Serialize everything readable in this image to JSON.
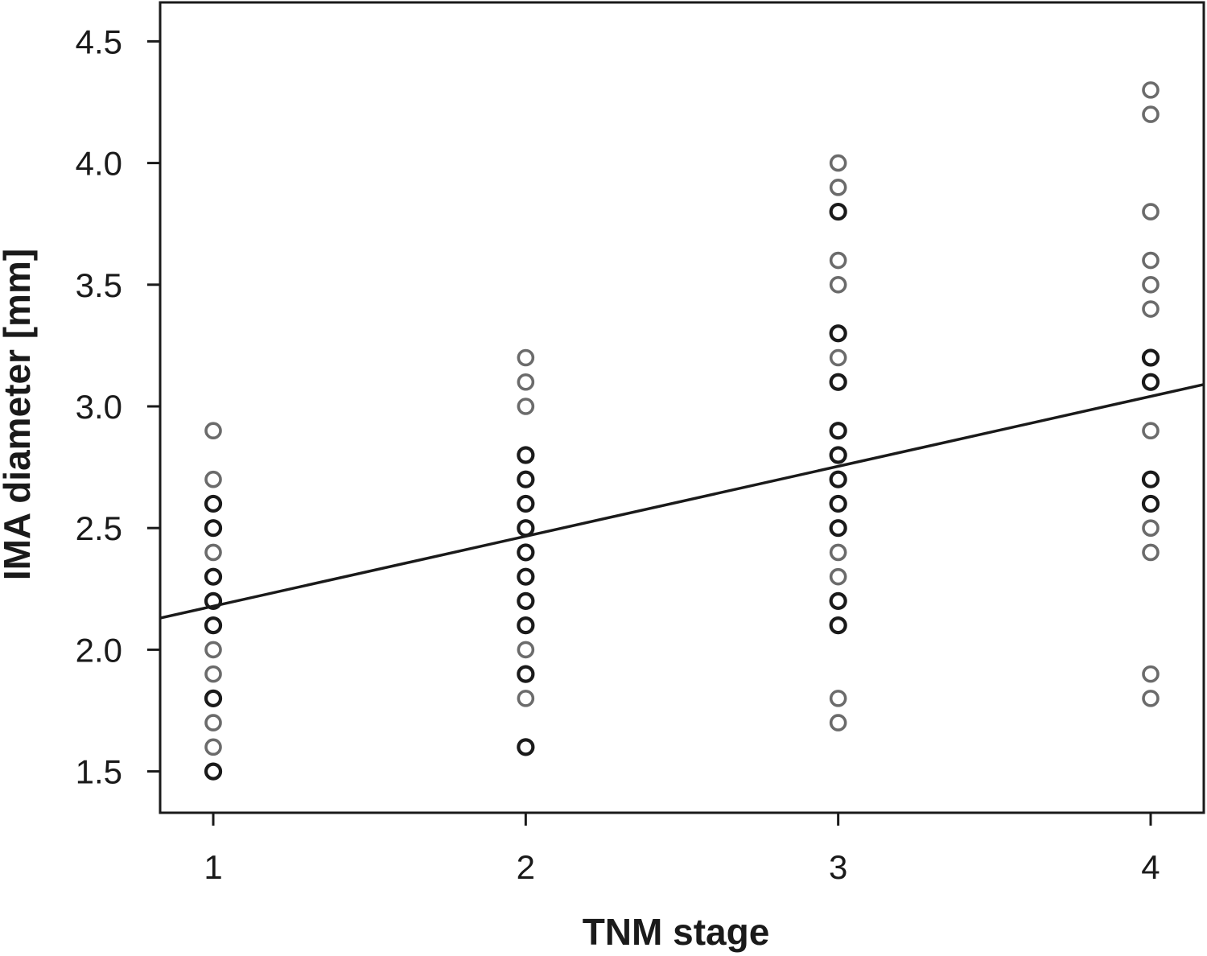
{
  "chart_data": {
    "type": "scatter",
    "xlabel": "TNM stage",
    "ylabel": "IMA diameter [mm]",
    "x_ticks": [
      "1",
      "2",
      "3",
      "4"
    ],
    "y_ticks": [
      "1.5",
      "2.0",
      "2.5",
      "3.0",
      "3.5",
      "4.0",
      "4.5"
    ],
    "xlim": [
      0.83,
      4.17
    ],
    "ylim": [
      1.33,
      4.66
    ],
    "grid": false,
    "colors": {
      "multiple": "#1a1a1a",
      "single": "#6b6b6b",
      "fit_line": "#1a1a1a"
    },
    "points": [
      {
        "x": 1,
        "y": 2.9,
        "multiple": false
      },
      {
        "x": 1,
        "y": 2.7,
        "multiple": false
      },
      {
        "x": 1,
        "y": 2.6,
        "multiple": true
      },
      {
        "x": 1,
        "y": 2.5,
        "multiple": true
      },
      {
        "x": 1,
        "y": 2.4,
        "multiple": false
      },
      {
        "x": 1,
        "y": 2.3,
        "multiple": true
      },
      {
        "x": 1,
        "y": 2.2,
        "multiple": true
      },
      {
        "x": 1,
        "y": 2.1,
        "multiple": true
      },
      {
        "x": 1,
        "y": 2.0,
        "multiple": false
      },
      {
        "x": 1,
        "y": 1.9,
        "multiple": false
      },
      {
        "x": 1,
        "y": 1.8,
        "multiple": true
      },
      {
        "x": 1,
        "y": 1.7,
        "multiple": false
      },
      {
        "x": 1,
        "y": 1.6,
        "multiple": false
      },
      {
        "x": 1,
        "y": 1.5,
        "multiple": true
      },
      {
        "x": 2,
        "y": 3.2,
        "multiple": false
      },
      {
        "x": 2,
        "y": 3.1,
        "multiple": false
      },
      {
        "x": 2,
        "y": 3.0,
        "multiple": false
      },
      {
        "x": 2,
        "y": 2.8,
        "multiple": true
      },
      {
        "x": 2,
        "y": 2.7,
        "multiple": true
      },
      {
        "x": 2,
        "y": 2.6,
        "multiple": true
      },
      {
        "x": 2,
        "y": 2.5,
        "multiple": true
      },
      {
        "x": 2,
        "y": 2.4,
        "multiple": true
      },
      {
        "x": 2,
        "y": 2.3,
        "multiple": true
      },
      {
        "x": 2,
        "y": 2.2,
        "multiple": true
      },
      {
        "x": 2,
        "y": 2.1,
        "multiple": true
      },
      {
        "x": 2,
        "y": 2.0,
        "multiple": false
      },
      {
        "x": 2,
        "y": 1.9,
        "multiple": true
      },
      {
        "x": 2,
        "y": 1.8,
        "multiple": false
      },
      {
        "x": 2,
        "y": 1.6,
        "multiple": true
      },
      {
        "x": 3,
        "y": 4.0,
        "multiple": false
      },
      {
        "x": 3,
        "y": 3.9,
        "multiple": false
      },
      {
        "x": 3,
        "y": 3.8,
        "multiple": true
      },
      {
        "x": 3,
        "y": 3.6,
        "multiple": false
      },
      {
        "x": 3,
        "y": 3.5,
        "multiple": false
      },
      {
        "x": 3,
        "y": 3.3,
        "multiple": true
      },
      {
        "x": 3,
        "y": 3.2,
        "multiple": false
      },
      {
        "x": 3,
        "y": 3.1,
        "multiple": true
      },
      {
        "x": 3,
        "y": 2.9,
        "multiple": true
      },
      {
        "x": 3,
        "y": 2.8,
        "multiple": true
      },
      {
        "x": 3,
        "y": 2.7,
        "multiple": true
      },
      {
        "x": 3,
        "y": 2.6,
        "multiple": true
      },
      {
        "x": 3,
        "y": 2.5,
        "multiple": true
      },
      {
        "x": 3,
        "y": 2.4,
        "multiple": false
      },
      {
        "x": 3,
        "y": 2.3,
        "multiple": false
      },
      {
        "x": 3,
        "y": 2.2,
        "multiple": true
      },
      {
        "x": 3,
        "y": 2.1,
        "multiple": true
      },
      {
        "x": 3,
        "y": 1.8,
        "multiple": false
      },
      {
        "x": 3,
        "y": 1.7,
        "multiple": false
      },
      {
        "x": 4,
        "y": 4.3,
        "multiple": false
      },
      {
        "x": 4,
        "y": 4.2,
        "multiple": false
      },
      {
        "x": 4,
        "y": 3.8,
        "multiple": false
      },
      {
        "x": 4,
        "y": 3.6,
        "multiple": false
      },
      {
        "x": 4,
        "y": 3.5,
        "multiple": false
      },
      {
        "x": 4,
        "y": 3.4,
        "multiple": false
      },
      {
        "x": 4,
        "y": 3.2,
        "multiple": true
      },
      {
        "x": 4,
        "y": 3.1,
        "multiple": true
      },
      {
        "x": 4,
        "y": 2.9,
        "multiple": false
      },
      {
        "x": 4,
        "y": 2.7,
        "multiple": true
      },
      {
        "x": 4,
        "y": 2.6,
        "multiple": true
      },
      {
        "x": 4,
        "y": 2.5,
        "multiple": false
      },
      {
        "x": 4,
        "y": 2.4,
        "multiple": false
      },
      {
        "x": 4,
        "y": 1.9,
        "multiple": false
      },
      {
        "x": 4,
        "y": 1.8,
        "multiple": false
      }
    ],
    "fit_line": {
      "x": [
        0.83,
        4.17
      ],
      "y": [
        2.13,
        3.09
      ]
    }
  }
}
